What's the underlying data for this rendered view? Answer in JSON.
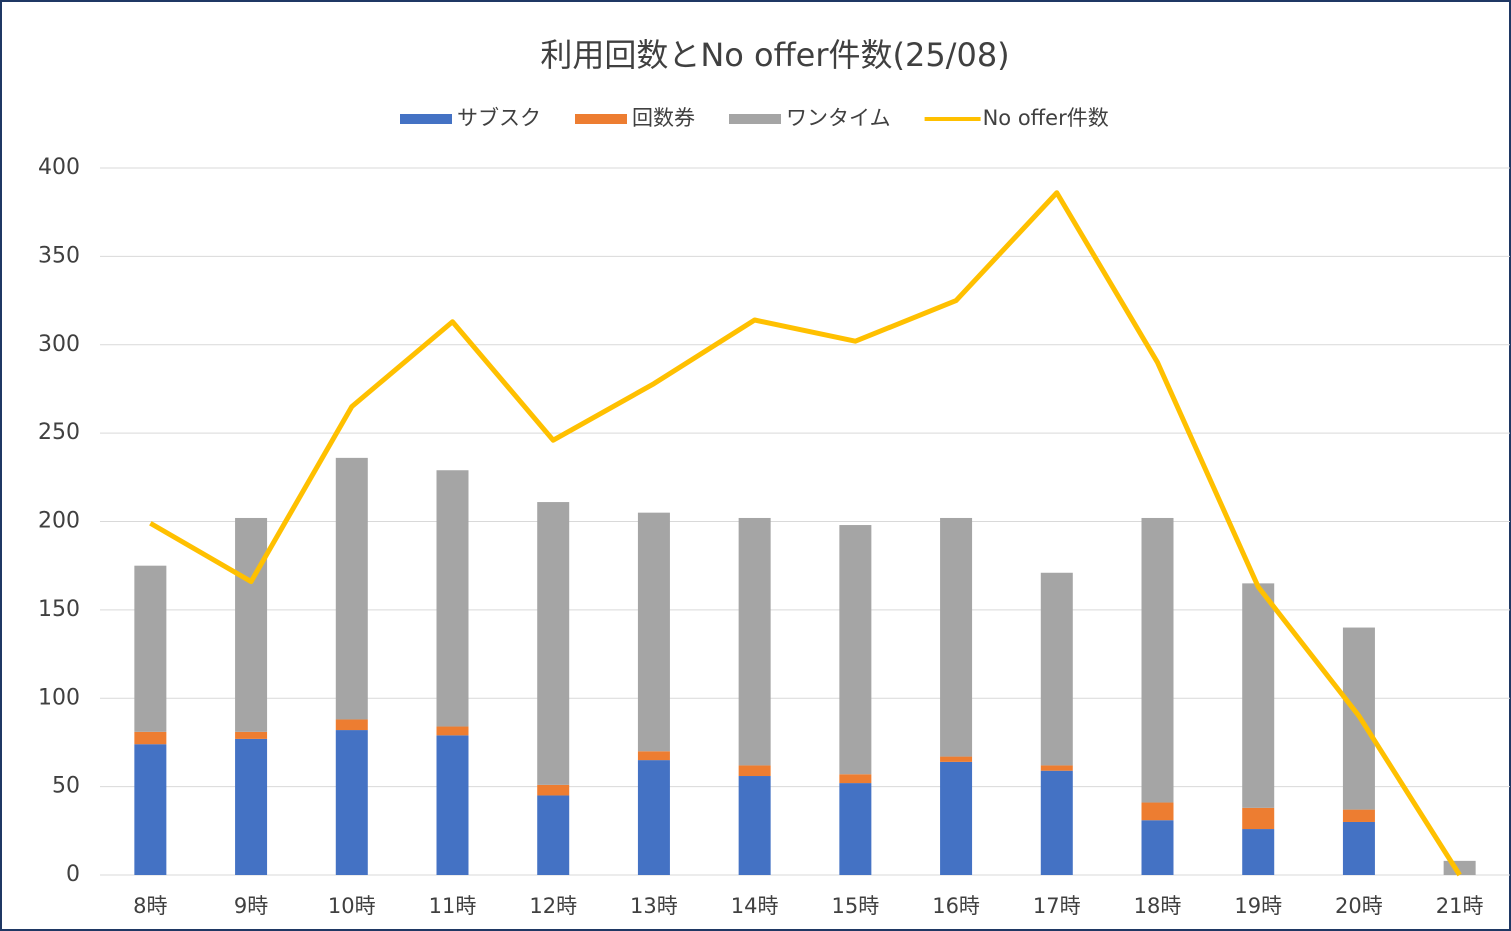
{
  "chart_data": {
    "type": "bar",
    "stacked": true,
    "title": "利用回数とNo offer件数(25/08)",
    "categories": [
      "8時",
      "9時",
      "10時",
      "11時",
      "12時",
      "13時",
      "14時",
      "15時",
      "16時",
      "17時",
      "18時",
      "19時",
      "20時",
      "21時"
    ],
    "series": [
      {
        "name": "サブスク",
        "type": "bar",
        "color": "#4472c4",
        "values": [
          74,
          77,
          82,
          79,
          45,
          65,
          56,
          52,
          64,
          59,
          31,
          26,
          30,
          0
        ]
      },
      {
        "name": "回数券",
        "type": "bar",
        "color": "#ed7d31",
        "values": [
          7,
          4,
          6,
          5,
          6,
          5,
          6,
          5,
          3,
          3,
          10,
          12,
          7,
          0
        ]
      },
      {
        "name": "ワンタイム",
        "type": "bar",
        "color": "#a5a5a5",
        "values": [
          94,
          121,
          148,
          145,
          160,
          135,
          140,
          141,
          135,
          109,
          161,
          127,
          103,
          8
        ]
      },
      {
        "name": "No offer件数",
        "type": "line",
        "color": "#ffc000",
        "values": [
          199,
          166,
          265,
          313,
          246,
          278,
          314,
          302,
          325,
          386,
          290,
          163,
          90,
          0
        ]
      }
    ],
    "ylim": [
      0,
      400
    ],
    "yticks": [
      0,
      50,
      100,
      150,
      200,
      250,
      300,
      350,
      400
    ],
    "grid": true,
    "legend": "top"
  }
}
